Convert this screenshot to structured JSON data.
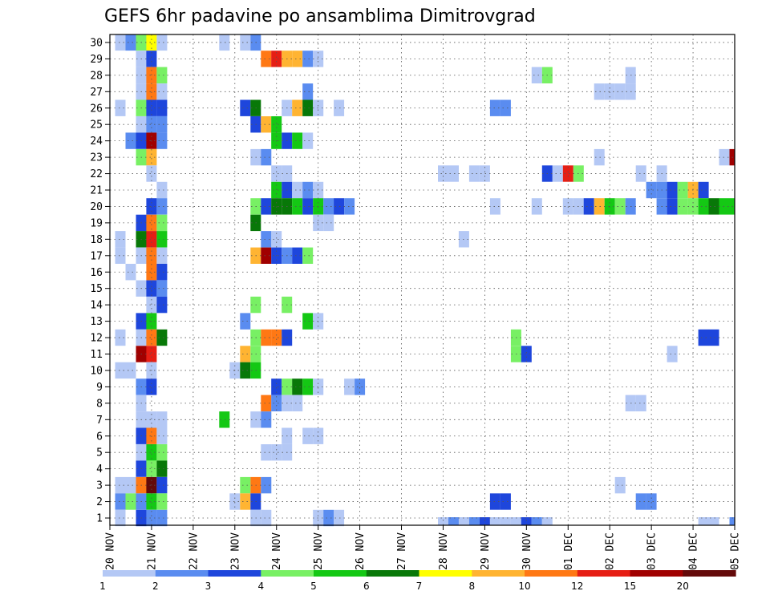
{
  "chart_data": {
    "type": "heatmap",
    "title": "GEFS 6hr padavine po ansamblima Dimitrovgrad",
    "x_ticks": [
      "20 NOV",
      "21 NOV",
      "22 NOV",
      "23 NOV",
      "24 NOV",
      "25 NOV",
      "26 NOV",
      "27 NOV",
      "28 NOV",
      "29 NOV",
      "30 NOV",
      "01 DEC",
      "02 DEC",
      "03 DEC",
      "04 DEC",
      "05 DEC"
    ],
    "y_ticks": [
      "1",
      "2",
      "3",
      "4",
      "5",
      "6",
      "7",
      "8",
      "9",
      "10",
      "11",
      "12",
      "13",
      "14",
      "15",
      "16",
      "17",
      "18",
      "19",
      "20",
      "21",
      "22",
      "23",
      "24",
      "25",
      "26",
      "27",
      "28",
      "29",
      "30"
    ],
    "xlim": [
      0,
      15
    ],
    "ylim": [
      0,
      30
    ],
    "grid": true,
    "step_days": 0.25,
    "color_scale": {
      "labels": [
        "1",
        "2",
        "3",
        "4",
        "5",
        "6",
        "7",
        "8",
        "10",
        "12",
        "15",
        "20"
      ],
      "colors": [
        "#b4c8f5",
        "#5a8cf0",
        "#1e46dc",
        "#78f064",
        "#14c814",
        "#087808",
        "#ffff00",
        "#ffb432",
        "#ff7814",
        "#e61e14",
        "#a00000",
        "#640a0a"
      ]
    },
    "cells": [
      [
        0.25,
        30,
        1
      ],
      [
        0.5,
        30,
        2
      ],
      [
        0.75,
        30,
        4
      ],
      [
        1,
        30,
        7
      ],
      [
        1.25,
        30,
        1
      ],
      [
        2.75,
        30,
        1
      ],
      [
        3.25,
        30,
        1
      ],
      [
        3.5,
        30,
        2
      ],
      [
        0.75,
        29,
        1
      ],
      [
        1,
        29,
        3
      ],
      [
        3.75,
        29,
        9
      ],
      [
        4,
        29,
        10
      ],
      [
        4.25,
        29,
        8
      ],
      [
        4.5,
        29,
        8
      ],
      [
        4.75,
        29,
        2
      ],
      [
        5,
        29,
        1
      ],
      [
        0.75,
        28,
        1
      ],
      [
        1,
        28,
        9
      ],
      [
        1.25,
        28,
        4
      ],
      [
        10.25,
        28,
        1
      ],
      [
        10.5,
        28,
        4
      ],
      [
        12.5,
        28,
        1
      ],
      [
        0.75,
        27,
        1
      ],
      [
        1,
        27,
        9
      ],
      [
        1.25,
        27,
        1
      ],
      [
        4.75,
        27,
        2
      ],
      [
        11.75,
        27,
        1
      ],
      [
        12,
        27,
        1
      ],
      [
        12.25,
        27,
        1
      ],
      [
        12.5,
        27,
        1
      ],
      [
        0.25,
        26,
        1
      ],
      [
        0.75,
        26,
        4
      ],
      [
        1,
        26,
        3
      ],
      [
        1.25,
        26,
        3
      ],
      [
        3.25,
        26,
        3
      ],
      [
        3.5,
        26,
        6
      ],
      [
        4.25,
        26,
        1
      ],
      [
        4.5,
        26,
        8
      ],
      [
        4.75,
        26,
        6
      ],
      [
        5,
        26,
        1
      ],
      [
        5.5,
        26,
        1
      ],
      [
        9.25,
        26,
        2
      ],
      [
        9.5,
        26,
        2
      ],
      [
        0.75,
        25,
        1
      ],
      [
        1,
        25,
        2
      ],
      [
        1.25,
        25,
        2
      ],
      [
        3.5,
        25,
        3
      ],
      [
        3.75,
        25,
        8
      ],
      [
        4,
        25,
        5
      ],
      [
        0.5,
        24,
        2
      ],
      [
        0.75,
        24,
        3
      ],
      [
        1,
        24,
        11
      ],
      [
        1.25,
        24,
        2
      ],
      [
        4,
        24,
        5
      ],
      [
        4.25,
        24,
        3
      ],
      [
        4.5,
        24,
        5
      ],
      [
        4.75,
        24,
        1
      ],
      [
        0.75,
        23,
        4
      ],
      [
        1,
        23,
        8
      ],
      [
        3.5,
        23,
        1
      ],
      [
        3.75,
        23,
        2
      ],
      [
        11.75,
        23,
        1
      ],
      [
        14.75,
        23,
        1
      ],
      [
        15,
        23,
        11
      ],
      [
        1,
        22,
        1
      ],
      [
        4,
        22,
        1
      ],
      [
        4.25,
        22,
        1
      ],
      [
        8,
        22,
        1
      ],
      [
        8.25,
        22,
        1
      ],
      [
        8.75,
        22,
        1
      ],
      [
        9,
        22,
        1
      ],
      [
        10.5,
        22,
        3
      ],
      [
        10.75,
        22,
        1
      ],
      [
        11,
        22,
        10
      ],
      [
        11.25,
        22,
        4
      ],
      [
        12.75,
        22,
        1
      ],
      [
        13.25,
        22,
        1
      ],
      [
        1.25,
        21,
        1
      ],
      [
        4,
        21,
        5
      ],
      [
        4.25,
        21,
        3
      ],
      [
        4.5,
        21,
        1
      ],
      [
        4.75,
        21,
        2
      ],
      [
        5,
        21,
        1
      ],
      [
        13,
        21,
        2
      ],
      [
        13.25,
        21,
        2
      ],
      [
        13.5,
        21,
        3
      ],
      [
        13.75,
        21,
        4
      ],
      [
        14,
        21,
        8
      ],
      [
        14.25,
        21,
        3
      ],
      [
        1,
        20,
        3
      ],
      [
        1.25,
        20,
        2
      ],
      [
        3.5,
        20,
        4
      ],
      [
        3.75,
        20,
        3
      ],
      [
        4,
        20,
        6
      ],
      [
        4.25,
        20,
        6
      ],
      [
        4.5,
        20,
        5
      ],
      [
        4.75,
        20,
        3
      ],
      [
        5,
        20,
        5
      ],
      [
        5.25,
        20,
        2
      ],
      [
        5.5,
        20,
        3
      ],
      [
        5.75,
        20,
        2
      ],
      [
        9.25,
        20,
        1
      ],
      [
        10.25,
        20,
        1
      ],
      [
        11,
        20,
        1
      ],
      [
        11.25,
        20,
        1
      ],
      [
        11.5,
        20,
        3
      ],
      [
        11.75,
        20,
        8
      ],
      [
        12,
        20,
        5
      ],
      [
        12.25,
        20,
        4
      ],
      [
        12.5,
        20,
        2
      ],
      [
        13.25,
        20,
        2
      ],
      [
        13.5,
        20,
        3
      ],
      [
        13.75,
        20,
        4
      ],
      [
        14,
        20,
        4
      ],
      [
        14.25,
        20,
        5
      ],
      [
        14.5,
        20,
        6
      ],
      [
        14.75,
        20,
        5
      ],
      [
        15,
        20,
        5
      ],
      [
        0.75,
        19,
        3
      ],
      [
        1,
        19,
        9
      ],
      [
        1.25,
        19,
        4
      ],
      [
        3.5,
        19,
        6
      ],
      [
        5,
        19,
        1
      ],
      [
        5.25,
        19,
        1
      ],
      [
        0.25,
        18,
        1
      ],
      [
        0.75,
        18,
        6
      ],
      [
        1,
        18,
        10
      ],
      [
        1.25,
        18,
        5
      ],
      [
        3.75,
        18,
        2
      ],
      [
        4,
        18,
        1
      ],
      [
        8.5,
        18,
        1
      ],
      [
        0.25,
        17,
        1
      ],
      [
        0.75,
        17,
        1
      ],
      [
        1,
        17,
        9
      ],
      [
        1.25,
        17,
        1
      ],
      [
        3.5,
        17,
        8
      ],
      [
        3.75,
        17,
        11
      ],
      [
        4,
        17,
        3
      ],
      [
        4.25,
        17,
        2
      ],
      [
        4.5,
        17,
        3
      ],
      [
        4.75,
        17,
        4
      ],
      [
        0.5,
        16,
        1
      ],
      [
        1,
        16,
        9
      ],
      [
        1.25,
        16,
        3
      ],
      [
        0.75,
        15,
        1
      ],
      [
        1,
        15,
        3
      ],
      [
        1.25,
        15,
        2
      ],
      [
        1,
        14,
        1
      ],
      [
        1.25,
        14,
        3
      ],
      [
        3.5,
        14,
        4
      ],
      [
        4.25,
        14,
        4
      ],
      [
        0.75,
        13,
        3
      ],
      [
        1,
        13,
        5
      ],
      [
        3.25,
        13,
        2
      ],
      [
        4.75,
        13,
        5
      ],
      [
        5,
        13,
        1
      ],
      [
        0.25,
        12,
        1
      ],
      [
        0.75,
        12,
        1
      ],
      [
        1,
        12,
        9
      ],
      [
        1.25,
        12,
        6
      ],
      [
        3.5,
        12,
        4
      ],
      [
        3.75,
        12,
        9
      ],
      [
        4,
        12,
        9
      ],
      [
        4.25,
        12,
        3
      ],
      [
        9.75,
        12,
        4
      ],
      [
        14.25,
        12,
        3
      ],
      [
        14.5,
        12,
        3
      ],
      [
        0.75,
        11,
        11
      ],
      [
        1,
        11,
        10
      ],
      [
        3.25,
        11,
        8
      ],
      [
        3.5,
        11,
        4
      ],
      [
        9.75,
        11,
        4
      ],
      [
        10,
        11,
        3
      ],
      [
        13.5,
        11,
        1
      ],
      [
        0.25,
        10,
        1
      ],
      [
        0.5,
        10,
        1
      ],
      [
        1,
        10,
        1
      ],
      [
        3,
        10,
        1
      ],
      [
        3.25,
        10,
        6
      ],
      [
        3.5,
        10,
        5
      ],
      [
        0.75,
        9,
        2
      ],
      [
        1,
        9,
        3
      ],
      [
        4,
        9,
        3
      ],
      [
        4.25,
        9,
        4
      ],
      [
        4.5,
        9,
        6
      ],
      [
        4.75,
        9,
        5
      ],
      [
        5,
        9,
        1
      ],
      [
        5.75,
        9,
        1
      ],
      [
        6,
        9,
        2
      ],
      [
        0.75,
        8,
        1
      ],
      [
        3.75,
        8,
        9
      ],
      [
        4,
        8,
        2
      ],
      [
        4.25,
        8,
        1
      ],
      [
        4.5,
        8,
        1
      ],
      [
        12.5,
        8,
        1
      ],
      [
        12.75,
        8,
        1
      ],
      [
        0.75,
        7,
        1
      ],
      [
        1,
        7,
        1
      ],
      [
        1.25,
        7,
        1
      ],
      [
        2.75,
        7,
        5
      ],
      [
        3.5,
        7,
        1
      ],
      [
        3.75,
        7,
        2
      ],
      [
        0.75,
        6,
        3
      ],
      [
        1,
        6,
        9
      ],
      [
        1.25,
        6,
        1
      ],
      [
        4.25,
        6,
        1
      ],
      [
        4.75,
        6,
        1
      ],
      [
        5,
        6,
        1
      ],
      [
        0.75,
        5,
        1
      ],
      [
        1,
        5,
        5
      ],
      [
        1.25,
        5,
        4
      ],
      [
        3.75,
        5,
        1
      ],
      [
        4,
        5,
        1
      ],
      [
        4.25,
        5,
        1
      ],
      [
        0.75,
        4,
        3
      ],
      [
        1,
        4,
        4
      ],
      [
        1.25,
        4,
        6
      ],
      [
        0.25,
        3,
        1
      ],
      [
        0.5,
        3,
        1
      ],
      [
        0.75,
        3,
        9
      ],
      [
        1,
        3,
        12
      ],
      [
        1.25,
        3,
        3
      ],
      [
        3.25,
        3,
        4
      ],
      [
        3.5,
        3,
        9
      ],
      [
        3.75,
        3,
        2
      ],
      [
        12.25,
        3,
        1
      ],
      [
        0.25,
        2,
        2
      ],
      [
        0.5,
        2,
        4
      ],
      [
        0.75,
        2,
        2
      ],
      [
        1,
        2,
        5
      ],
      [
        1.25,
        2,
        4
      ],
      [
        3,
        2,
        1
      ],
      [
        3.25,
        2,
        8
      ],
      [
        3.5,
        2,
        3
      ],
      [
        9.25,
        2,
        3
      ],
      [
        9.5,
        2,
        3
      ],
      [
        12.75,
        2,
        2
      ],
      [
        13,
        2,
        2
      ],
      [
        0.25,
        1,
        1
      ],
      [
        0.75,
        1,
        3
      ],
      [
        1,
        1,
        2
      ],
      [
        1.25,
        1,
        2
      ],
      [
        3.5,
        1,
        1
      ],
      [
        3.75,
        1,
        1
      ],
      [
        5,
        1,
        1
      ],
      [
        5.25,
        1,
        2
      ],
      [
        5.5,
        1,
        1
      ]
    ],
    "bottom_strip": [
      [
        8,
        1
      ],
      [
        8.25,
        2
      ],
      [
        8.5,
        1
      ],
      [
        8.75,
        2
      ],
      [
        9,
        3
      ],
      [
        9.25,
        1
      ],
      [
        9.5,
        1
      ],
      [
        9.75,
        1
      ],
      [
        10,
        3
      ],
      [
        10.25,
        2
      ],
      [
        10.5,
        1
      ],
      [
        14.25,
        1
      ],
      [
        14.5,
        1
      ],
      [
        15,
        2
      ]
    ]
  }
}
